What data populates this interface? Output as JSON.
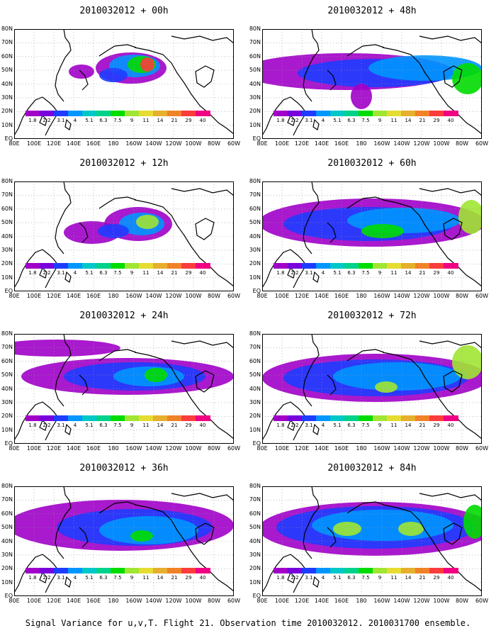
{
  "panels": [
    {
      "title": "2010032012 + 00h"
    },
    {
      "title": "2010032012 + 48h"
    },
    {
      "title": "2010032012 + 12h"
    },
    {
      "title": "2010032012 + 60h"
    },
    {
      "title": "2010032012 + 24h"
    },
    {
      "title": "2010032012 + 72h"
    },
    {
      "title": "2010032012 + 36h"
    },
    {
      "title": "2010032012 + 84h"
    }
  ],
  "lat_labels": [
    "80N",
    "70N",
    "60N",
    "50N",
    "40N",
    "30N",
    "20N",
    "10N",
    "EQ"
  ],
  "lon_labels": [
    "80E",
    "100E",
    "120E",
    "140E",
    "160E",
    "180",
    "160W",
    "140W",
    "120W",
    "100W",
    "80W",
    "60W"
  ],
  "colorbar": {
    "ticks": [
      "1.8",
      "2.2",
      "3.1",
      "4",
      "5.1",
      "6.3",
      "7.5",
      "9",
      "11",
      "14",
      "21",
      "29",
      "40"
    ],
    "colors": [
      "#a000c8",
      "#7800dc",
      "#1e3cff",
      "#0096ff",
      "#00c8c8",
      "#00d28c",
      "#00dc00",
      "#a0e632",
      "#e6dc32",
      "#e6af2d",
      "#f08228",
      "#fa3c3c",
      "#f00082"
    ]
  },
  "footer": "Signal Variance for u,v,T. Flight 21. Observation time 2010032012. 2010031700 ensemble."
}
